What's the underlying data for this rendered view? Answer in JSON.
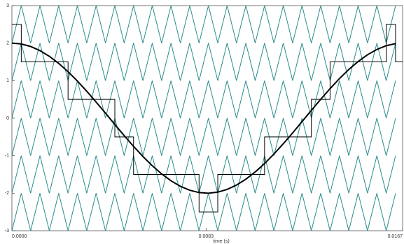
{
  "chart_data": {
    "type": "line",
    "xlabel": "time (s)",
    "xlim": [
      0,
      0.0167
    ],
    "ylim": [
      -3,
      3
    ],
    "xticks": [
      {
        "value": 0,
        "label": "0.0000"
      },
      {
        "value": 0.0083,
        "label": "0.0083"
      },
      {
        "value": 0.0167,
        "label": "0.0167"
      }
    ],
    "yticks": [
      -3,
      -2,
      -1,
      0,
      1,
      2,
      3
    ],
    "x": [
      0,
      0.0004,
      0.0008,
      0.0012,
      0.0016,
      0.002,
      0.0024,
      0.0028,
      0.0032,
      0.0036,
      0.004,
      0.0044,
      0.0048,
      0.0052,
      0.0056,
      0.006,
      0.0064,
      0.0068,
      0.0072,
      0.0076,
      0.008,
      0.0084,
      0.0088,
      0.0092,
      0.0096,
      0.01,
      0.0104,
      0.0108,
      0.0112,
      0.0116,
      0.012,
      0.0124,
      0.0128,
      0.0132,
      0.0136,
      0.014,
      0.0144,
      0.0148,
      0.0152,
      0.0156,
      0.016,
      0.0164
    ],
    "series": [
      {
        "color": "#2a8c8c",
        "style": "line",
        "values": [
          -3,
          -2,
          -3,
          -2,
          -3,
          -2,
          -3,
          -2,
          -3,
          -2,
          -3,
          -2,
          -3,
          -2,
          -3,
          -2,
          -3,
          -2,
          -3,
          -2,
          -3,
          -2,
          -3,
          -2,
          -3,
          -2,
          -3,
          -2,
          -3,
          -2,
          -3,
          -2,
          -3,
          -2,
          -3,
          -2,
          -3,
          -2,
          -3,
          -2,
          -3,
          -2
        ]
      },
      {
        "color": "#2a8c8c",
        "style": "line",
        "values": [
          -2,
          -1,
          -2,
          -1,
          -2,
          -1,
          -2,
          -1,
          -2,
          -1,
          -2,
          -1,
          -2,
          -1,
          -2,
          -1,
          -2,
          -1,
          -2,
          -1,
          -2,
          -1,
          -2,
          -1,
          -2,
          -1,
          -2,
          -1,
          -2,
          -1,
          -2,
          -1,
          -2,
          -1,
          -2,
          -1,
          -2,
          -1,
          -2,
          -1,
          -2,
          -1
        ]
      },
      {
        "color": "#2a8c8c",
        "style": "line",
        "values": [
          -1,
          0,
          -1,
          0,
          -1,
          0,
          -1,
          0,
          -1,
          0,
          -1,
          0,
          -1,
          0,
          -1,
          0,
          -1,
          0,
          -1,
          0,
          -1,
          0,
          -1,
          0,
          -1,
          0,
          -1,
          0,
          -1,
          0,
          -1,
          0,
          -1,
          0,
          -1,
          0,
          -1,
          0,
          -1,
          0,
          -1,
          0
        ]
      },
      {
        "color": "#2a8c8c",
        "style": "line",
        "values": [
          0,
          1,
          0,
          1,
          0,
          1,
          0,
          1,
          0,
          1,
          0,
          1,
          0,
          1,
          0,
          1,
          0,
          1,
          0,
          1,
          0,
          1,
          0,
          1,
          0,
          1,
          0,
          1,
          0,
          1,
          0,
          1,
          0,
          1,
          0,
          1,
          0,
          1,
          0,
          1,
          0,
          1
        ]
      },
      {
        "color": "#2a8c8c",
        "style": "line",
        "values": [
          1,
          2,
          1,
          2,
          1,
          2,
          1,
          2,
          1,
          2,
          1,
          2,
          1,
          2,
          1,
          2,
          1,
          2,
          1,
          2,
          1,
          2,
          1,
          2,
          1,
          2,
          1,
          2,
          1,
          2,
          1,
          2,
          1,
          2,
          1,
          2,
          1,
          2,
          1,
          2,
          1,
          2
        ]
      },
      {
        "color": "#2a8c8c",
        "style": "line",
        "values": [
          2,
          3,
          2,
          3,
          2,
          3,
          2,
          3,
          2,
          3,
          2,
          3,
          2,
          3,
          2,
          3,
          2,
          3,
          2,
          3,
          2,
          3,
          2,
          3,
          2,
          3,
          2,
          3,
          2,
          3,
          2,
          3,
          2,
          3,
          2,
          3,
          2,
          3,
          2,
          3,
          2,
          3
        ]
      },
      {
        "color": "#000000",
        "style": "step",
        "values": [
          2.5,
          1.5,
          1.5,
          1.5,
          1.5,
          1.5,
          0.5,
          0.5,
          0.5,
          0.5,
          0.5,
          -0.5,
          -0.5,
          -1.5,
          -1.5,
          -1.5,
          -1.5,
          -1.5,
          -1.5,
          -1.5,
          -2.5,
          -2.5,
          -1.5,
          -1.5,
          -1.5,
          -1.5,
          -1.5,
          -0.5,
          -0.5,
          -0.5,
          -0.5,
          -0.5,
          0.5,
          0.5,
          1.5,
          1.5,
          1.5,
          1.5,
          1.5,
          1.5,
          2.5,
          1.5
        ]
      },
      {
        "color": "#000000",
        "style": "thick",
        "values": [
          2,
          1.977,
          1.91,
          1.8,
          1.648,
          1.46,
          1.238,
          0.989,
          0.717,
          0.429,
          0.132,
          -0.169,
          -0.466,
          -0.752,
          -1.022,
          -1.268,
          -1.485,
          -1.669,
          -1.816,
          -1.921,
          -1.983,
          -2,
          -1.971,
          -1.899,
          -1.783,
          -1.627,
          -1.434,
          -1.209,
          -0.956,
          -0.682,
          -0.393,
          -0.094,
          0.207,
          0.502,
          0.787,
          1.054,
          1.297,
          1.51,
          1.69,
          1.831,
          1.931,
          1.987
        ]
      }
    ]
  }
}
